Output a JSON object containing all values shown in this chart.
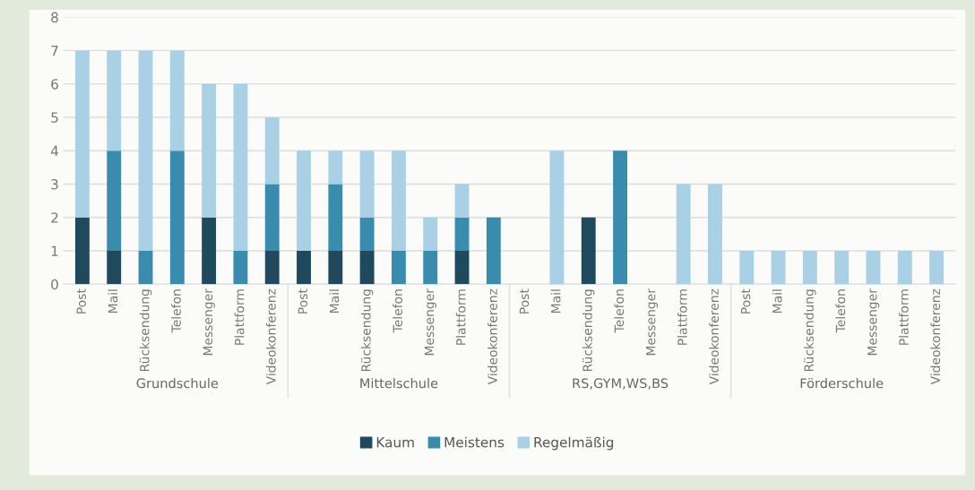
{
  "chart_data": {
    "type": "bar",
    "stacked": true,
    "categories": [
      "Post",
      "Mail",
      "Rücksendung",
      "Telefon",
      "Messenger",
      "Plattform",
      "Videokonferenz",
      "Post",
      "Mail",
      "Rücksendung",
      "Telefon",
      "Messenger",
      "Plattform",
      "Videokonferenz",
      "Post",
      "Mail",
      "Rücksendung",
      "Telefon",
      "Messenger",
      "Plattform",
      "Videokonferenz",
      "Post",
      "Mail",
      "Rücksendung",
      "Telefon",
      "Messenger",
      "Plattform",
      "Videokonferenz"
    ],
    "series": [
      {
        "name": "Kaum",
        "color": "#1f4a5e",
        "values": [
          2,
          1,
          0,
          0,
          2,
          0,
          1,
          1,
          1,
          1,
          0,
          0,
          1,
          0,
          0,
          0,
          2,
          0,
          0,
          0,
          0,
          0,
          0,
          0,
          0,
          0,
          0,
          0
        ]
      },
      {
        "name": "Meistens",
        "color": "#3a8cae",
        "values": [
          0,
          3,
          1,
          4,
          0,
          1,
          2,
          0,
          2,
          1,
          1,
          1,
          1,
          2,
          0,
          0,
          0,
          4,
          0,
          0,
          0,
          0,
          0,
          0,
          0,
          0,
          0,
          0
        ]
      },
      {
        "name": "Regelmäßig",
        "color": "#a9d0e4",
        "values": [
          5,
          3,
          6,
          3,
          4,
          5,
          2,
          3,
          1,
          2,
          3,
          1,
          1,
          0,
          0,
          4,
          0,
          0,
          0,
          3,
          3,
          1,
          1,
          1,
          1,
          1,
          1,
          1
        ]
      }
    ],
    "annotations": [
      "Grundschule",
      "Mittelschule",
      "RS,GYM,WS,BS",
      "Förderschule"
    ],
    "ylim": [
      0,
      8
    ],
    "yticks": [
      0,
      1,
      2,
      3,
      4,
      5,
      6,
      7,
      8
    ],
    "grid": "y",
    "legend": "bottom"
  }
}
